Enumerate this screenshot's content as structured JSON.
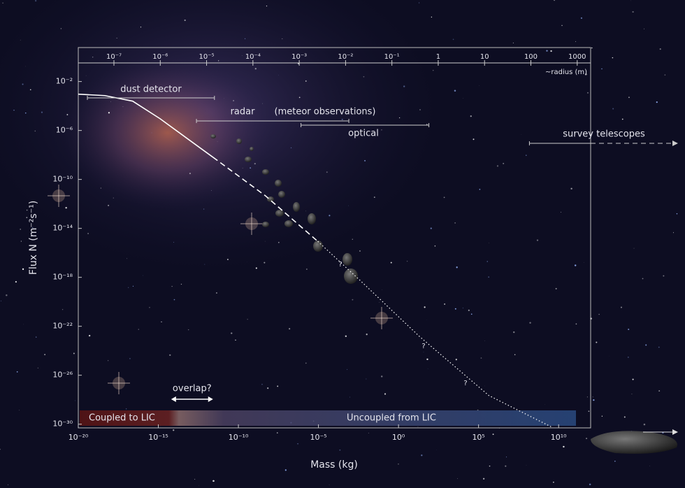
{
  "chart_data": {
    "type": "line",
    "xlabel": "Mass (kg)",
    "ylabel": "Flux N (m⁻²s⁻¹)",
    "xscale": "log",
    "yscale": "log",
    "xlim": [
      1e-20,
      1000000000000.0
    ],
    "ylim": [
      5e-31,
      6
    ],
    "xticks": [
      {
        "value": 1e-20,
        "label": "10⁻²⁰"
      },
      {
        "value": 1e-15,
        "label": "10⁻¹⁵"
      },
      {
        "value": 1e-10,
        "label": "10⁻¹⁰"
      },
      {
        "value": 1e-05,
        "label": "10⁻⁵"
      },
      {
        "value": 1,
        "label": "10⁰"
      },
      {
        "value": 100000.0,
        "label": "10⁵"
      },
      {
        "value": 10000000000.0,
        "label": "10¹⁰"
      }
    ],
    "yticks": [
      {
        "value": 0.01,
        "label": "10⁻²"
      },
      {
        "value": 1e-06,
        "label": "10⁻⁶"
      },
      {
        "value": 1e-10,
        "label": "10⁻¹⁰"
      },
      {
        "value": 1e-14,
        "label": "10⁻¹⁴"
      },
      {
        "value": 1e-18,
        "label": "10⁻¹⁸"
      },
      {
        "value": 1e-22,
        "label": "10⁻²²"
      },
      {
        "value": 1e-26,
        "label": "10⁻²⁶"
      },
      {
        "value": 1e-30,
        "label": "10⁻³⁰"
      }
    ],
    "x2label": "~radius (m)",
    "x2lim": [
      1.7e-08,
      1950
    ],
    "x2ticks": [
      {
        "value": 1e-07,
        "label": "10⁻⁷"
      },
      {
        "value": 1e-06,
        "label": "10⁻⁶"
      },
      {
        "value": 1e-05,
        "label": "10⁻⁵"
      },
      {
        "value": 0.0001,
        "label": "10⁻⁴"
      },
      {
        "value": 0.001,
        "label": "10⁻³"
      },
      {
        "value": 0.01,
        "label": "10⁻²"
      },
      {
        "value": 0.1,
        "label": "10⁻¹"
      },
      1,
      10,
      100,
      1000
    ],
    "series": [
      {
        "style": "solid",
        "color": "#ffffff",
        "x": [
          1e-20,
          4.6e-19,
          2.5e-17,
          1.3e-15,
          7.9e-14,
          2.6e-12
        ],
        "values": [
          0.00093,
          0.00071,
          0.00025,
          9.1e-06,
          1.8e-07,
          6.5e-09
        ]
      },
      {
        "style": "dashed",
        "color": "#ffffff",
        "x": [
          2.6e-12,
          4.9e-09,
          9.1e-06
        ],
        "values": [
          6.5e-09,
          4.6e-12,
          8.7e-16
        ]
      },
      {
        "style": "dotted",
        "color": "#ffffff",
        "x": [
          9.1e-06,
          0.0063,
          19,
          440000.0,
          3700000000.0
        ],
        "values": [
          8.7e-16,
          3.2e-19,
          1.6e-23,
          2.2e-28,
          5.8e-31
        ]
      }
    ],
    "ranges": [
      {
        "label": "dust detector",
        "from": 3.7e-20,
        "to": 3.2e-12
      },
      {
        "label": "radar",
        "note": "(meteor observations)",
        "from": 2.4e-13,
        "to": 0.00079
      },
      {
        "label": "optical",
        "from": 8.1e-07,
        "to": 79.0
      },
      {
        "label": "survey telescopes",
        "from": 150000000.0
      }
    ],
    "overlap": {
      "label": "overlap?",
      "from": 6.3e-15,
      "to": 2.6e-12
    },
    "regions": [
      "Coupled to LIC",
      "Uncoupled from LIC"
    ],
    "annotations": [
      "?",
      "?",
      "?"
    ]
  }
}
